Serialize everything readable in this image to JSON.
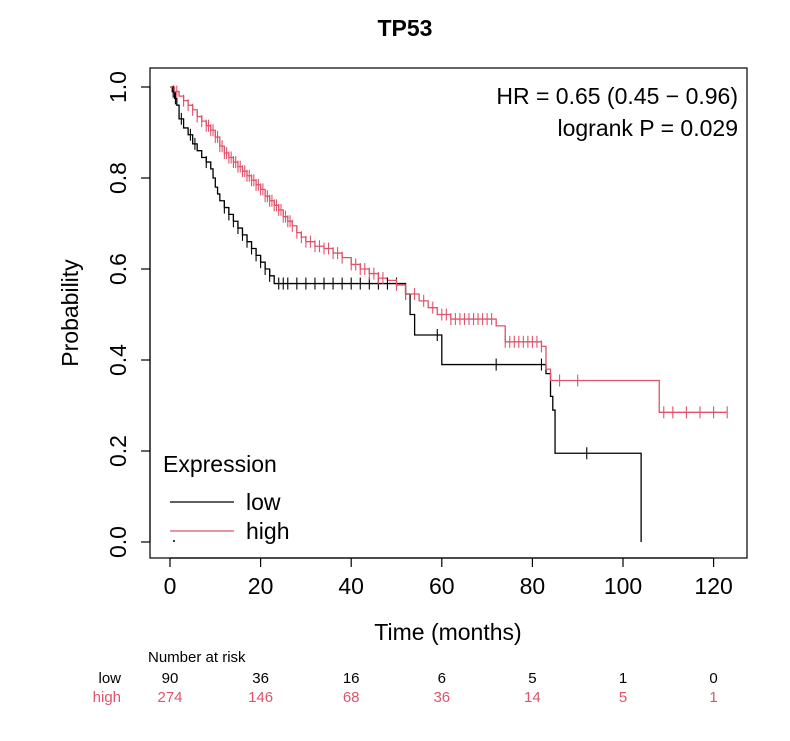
{
  "chart_data": {
    "type": "line",
    "title": "TP53",
    "xlabel": "Time (months)",
    "ylabel": "Probability",
    "xlim": [
      0,
      125
    ],
    "ylim": [
      0,
      1
    ],
    "x_ticks": [
      0,
      20,
      40,
      60,
      80,
      100,
      120
    ],
    "y_ticks": [
      0.0,
      0.2,
      0.4,
      0.6,
      0.8,
      1.0
    ],
    "x_tick_labels": [
      "0",
      "20",
      "40",
      "60",
      "80",
      "100",
      "120"
    ],
    "y_tick_labels": [
      "0.0",
      "0.2",
      "0.4",
      "0.6",
      "0.8",
      "1.0"
    ],
    "annotations": [
      "HR = 0.65 (0.45 − 0.96)",
      "logrank P = 0.029"
    ],
    "legend": {
      "title": "Expression",
      "position": "bottom-left",
      "entries": [
        {
          "name": "low",
          "color": "#000000"
        },
        {
          "name": "high",
          "color": "#DF536B"
        }
      ]
    },
    "series": [
      {
        "name": "low",
        "color": "#000000",
        "steps": [
          [
            0,
            1.0
          ],
          [
            0.5,
            0.99
          ],
          [
            1,
            0.975
          ],
          [
            1.5,
            0.96
          ],
          [
            2,
            0.93
          ],
          [
            3,
            0.91
          ],
          [
            4,
            0.895
          ],
          [
            5,
            0.875
          ],
          [
            6,
            0.86
          ],
          [
            7,
            0.845
          ],
          [
            8,
            0.835
          ],
          [
            9,
            0.82
          ],
          [
            9.5,
            0.8
          ],
          [
            10,
            0.78
          ],
          [
            10.5,
            0.765
          ],
          [
            11,
            0.75
          ],
          [
            12,
            0.735
          ],
          [
            13,
            0.72
          ],
          [
            14,
            0.705
          ],
          [
            15,
            0.69
          ],
          [
            16,
            0.675
          ],
          [
            17,
            0.66
          ],
          [
            18,
            0.645
          ],
          [
            19,
            0.63
          ],
          [
            20,
            0.615
          ],
          [
            21,
            0.6
          ],
          [
            22,
            0.585
          ],
          [
            23,
            0.568
          ],
          [
            52,
            0.545
          ],
          [
            53,
            0.5
          ],
          [
            54,
            0.455
          ],
          [
            60,
            0.39
          ],
          [
            83,
            0.37
          ],
          [
            84,
            0.32
          ],
          [
            84.5,
            0.29
          ],
          [
            85,
            0.195
          ],
          [
            104,
            0.0
          ]
        ],
        "end_x": 104,
        "censor_x": [
          0.7,
          1.2,
          2.5,
          4.5,
          5.5,
          8,
          12,
          13,
          14,
          15,
          16,
          17,
          18,
          19,
          20,
          21,
          22,
          24,
          25,
          26,
          28,
          30,
          32,
          34,
          36,
          38,
          40,
          42,
          44,
          46,
          48,
          50,
          52,
          59,
          72,
          82,
          92
        ]
      },
      {
        "name": "high",
        "color": "#DF536B",
        "steps": [
          [
            0,
            1.0
          ],
          [
            1,
            0.99
          ],
          [
            2,
            0.98
          ],
          [
            3,
            0.97
          ],
          [
            4,
            0.96
          ],
          [
            5,
            0.95
          ],
          [
            6,
            0.935
          ],
          [
            7,
            0.925
          ],
          [
            8,
            0.915
          ],
          [
            9,
            0.905
          ],
          [
            10,
            0.89
          ],
          [
            11,
            0.87
          ],
          [
            12,
            0.855
          ],
          [
            13,
            0.845
          ],
          [
            14,
            0.835
          ],
          [
            15,
            0.825
          ],
          [
            16,
            0.815
          ],
          [
            17,
            0.805
          ],
          [
            18,
            0.795
          ],
          [
            19,
            0.785
          ],
          [
            20,
            0.775
          ],
          [
            21,
            0.76
          ],
          [
            22,
            0.75
          ],
          [
            23,
            0.74
          ],
          [
            24,
            0.73
          ],
          [
            25,
            0.715
          ],
          [
            26,
            0.705
          ],
          [
            27,
            0.695
          ],
          [
            28,
            0.68
          ],
          [
            29,
            0.67
          ],
          [
            30,
            0.66
          ],
          [
            32,
            0.65
          ],
          [
            34,
            0.645
          ],
          [
            36,
            0.635
          ],
          [
            38,
            0.625
          ],
          [
            40,
            0.61
          ],
          [
            42,
            0.6
          ],
          [
            44,
            0.59
          ],
          [
            46,
            0.58
          ],
          [
            48,
            0.575
          ],
          [
            50,
            0.565
          ],
          [
            52,
            0.545
          ],
          [
            55,
            0.53
          ],
          [
            57,
            0.515
          ],
          [
            59,
            0.5
          ],
          [
            62,
            0.49
          ],
          [
            72,
            0.475
          ],
          [
            74,
            0.44
          ],
          [
            82,
            0.43
          ],
          [
            83,
            0.38
          ],
          [
            84,
            0.355
          ],
          [
            108,
            0.285
          ]
        ],
        "end_x": 123,
        "censor_x": [
          1.5,
          3,
          4,
          5,
          6,
          7,
          8,
          8.5,
          9,
          9.5,
          10,
          10.5,
          11,
          11.5,
          12,
          12.5,
          13,
          13.5,
          14,
          14.5,
          15,
          15.5,
          16,
          16.5,
          17,
          17.5,
          18,
          18.5,
          19,
          19.5,
          20,
          20.5,
          21,
          21.5,
          22,
          22.5,
          23,
          23.5,
          24,
          24.5,
          25,
          25.5,
          26,
          26.5,
          27,
          28,
          29,
          30,
          31,
          32,
          33,
          34,
          35,
          36,
          37,
          38,
          40,
          41,
          42,
          43,
          44,
          45,
          46,
          47,
          50,
          52,
          54,
          56,
          58,
          60,
          61,
          62,
          63,
          64,
          65,
          66,
          67,
          68,
          69,
          70,
          71,
          74,
          75,
          76,
          77,
          78,
          79,
          80,
          81,
          82,
          86,
          90,
          109,
          111,
          114,
          117,
          120,
          123
        ]
      }
    ],
    "risk_table": {
      "header": "Number at risk",
      "x": [
        0,
        20,
        40,
        60,
        80,
        100,
        120
      ],
      "rows": [
        {
          "name": "low",
          "color": "#000000",
          "values": [
            "90",
            "36",
            "16",
            "6",
            "5",
            "1",
            "0"
          ]
        },
        {
          "name": "high",
          "color": "#DF536B",
          "values": [
            "274",
            "146",
            "68",
            "36",
            "14",
            "5",
            "1"
          ]
        }
      ]
    }
  }
}
